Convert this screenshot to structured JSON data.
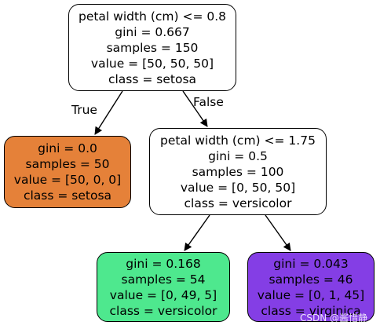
{
  "colors": {
    "setosa_fill": "#e58139",
    "versicolor_fill": "#4ee88e",
    "virginica_fill": "#843ee5",
    "default_fill": "#ffffff",
    "border": "#000000"
  },
  "nodes": {
    "root": {
      "lines": [
        "petal width (cm) <= 0.8",
        "gini = 0.667",
        "samples = 150",
        "value = [50, 50, 50]",
        "class = setosa"
      ],
      "fill": "#ffffff"
    },
    "left": {
      "lines": [
        "gini = 0.0",
        "samples = 50",
        "value = [50, 0, 0]",
        "class = setosa"
      ],
      "fill": "#e58139"
    },
    "right": {
      "lines": [
        "petal width (cm) <= 1.75",
        "gini = 0.5",
        "samples = 100",
        "value = [0, 50, 50]",
        "class = versicolor"
      ],
      "fill": "#ffffff"
    },
    "right_left": {
      "lines": [
        "gini = 0.168",
        "samples = 54",
        "value = [0, 49, 5]",
        "class = versicolor"
      ],
      "fill": "#4ee88e"
    },
    "right_right": {
      "lines": [
        "gini = 0.043",
        "samples = 46",
        "value = [0, 1, 45]",
        "class = virginica"
      ],
      "fill": "#843ee5"
    }
  },
  "edge_labels": {
    "true_label": "True",
    "false_label": "False"
  },
  "watermark": {
    "text": "CSDN @酱惜静"
  }
}
